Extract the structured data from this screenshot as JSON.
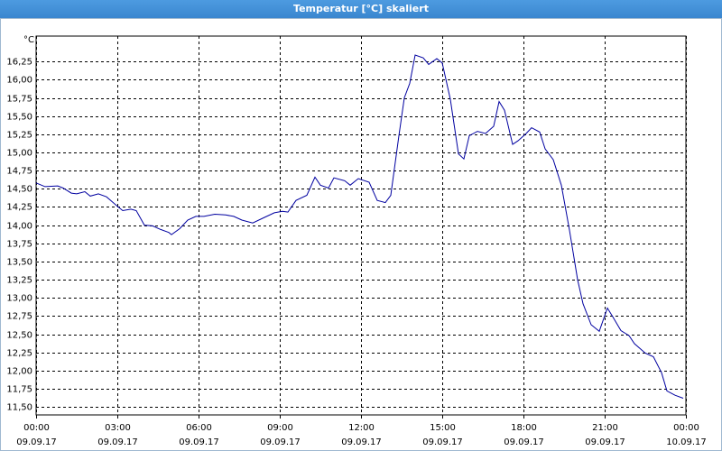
{
  "window_title": "Temperatur [°C] skaliert",
  "chart_data": {
    "type": "line",
    "y_unit_label": "°C",
    "x": [
      0,
      0.33,
      0.8,
      1.0,
      1.3,
      1.5,
      1.8,
      2.0,
      2.3,
      2.6,
      3.0,
      3.2,
      3.5,
      3.7,
      4.0,
      4.3,
      4.6,
      4.9,
      5.0,
      5.3,
      5.6,
      5.9,
      6.2,
      6.6,
      7.0,
      7.3,
      7.6,
      8.0,
      8.4,
      8.8,
      9.1,
      9.3,
      9.6,
      10.0,
      10.3,
      10.5,
      10.8,
      11.0,
      11.4,
      11.6,
      11.9,
      12.3,
      12.6,
      12.9,
      13.1,
      13.4,
      13.6,
      13.8,
      14.0,
      14.3,
      14.5,
      14.8,
      15.0,
      15.3,
      15.6,
      15.8,
      16.0,
      16.3,
      16.6,
      16.9,
      17.1,
      17.3,
      17.6,
      17.8,
      18.1,
      18.3,
      18.6,
      18.8,
      19.1,
      19.4,
      19.7,
      20.0,
      20.2,
      20.5,
      20.8,
      21.1,
      21.3,
      21.6,
      21.9,
      22.1,
      22.5,
      22.8,
      23.1,
      23.3,
      23.6,
      23.9
    ],
    "series": [
      {
        "name": "Temperatur",
        "color": "#0000a0",
        "values": [
          14.58,
          14.53,
          14.54,
          14.51,
          14.44,
          14.43,
          14.46,
          14.4,
          14.43,
          14.39,
          14.26,
          14.2,
          14.22,
          14.2,
          14.0,
          13.99,
          13.94,
          13.9,
          13.87,
          13.95,
          14.07,
          14.12,
          14.12,
          14.15,
          14.14,
          14.12,
          14.07,
          14.03,
          14.1,
          14.17,
          14.19,
          14.18,
          14.34,
          14.41,
          14.66,
          14.55,
          14.51,
          14.65,
          14.61,
          14.55,
          14.64,
          14.59,
          14.34,
          14.31,
          14.41,
          15.23,
          15.75,
          15.95,
          16.34,
          16.3,
          16.21,
          16.29,
          16.23,
          15.73,
          14.98,
          14.91,
          15.23,
          15.29,
          15.26,
          15.36,
          15.7,
          15.58,
          15.11,
          15.16,
          15.26,
          15.34,
          15.28,
          15.05,
          14.9,
          14.55,
          13.93,
          13.25,
          12.92,
          12.63,
          12.54,
          12.86,
          12.74,
          12.55,
          12.48,
          12.37,
          12.24,
          12.19,
          11.97,
          11.72,
          11.66,
          11.62
        ]
      }
    ],
    "xlim": [
      0,
      24
    ],
    "ylim": [
      11.39,
      16.6
    ],
    "xticks": [
      {
        "value": 0,
        "label": "00:00",
        "date": "09.09.17"
      },
      {
        "value": 3,
        "label": "03:00",
        "date": "09.09.17"
      },
      {
        "value": 6,
        "label": "06:00",
        "date": "09.09.17"
      },
      {
        "value": 9,
        "label": "09:00",
        "date": "09.09.17"
      },
      {
        "value": 12,
        "label": "12:00",
        "date": "09.09.17"
      },
      {
        "value": 15,
        "label": "15:00",
        "date": "09.09.17"
      },
      {
        "value": 18,
        "label": "18:00",
        "date": "09.09.17"
      },
      {
        "value": 21,
        "label": "21:00",
        "date": "09.09.17"
      },
      {
        "value": 24,
        "label": "00:00",
        "date": "10.09.17"
      }
    ],
    "yticks": [
      {
        "value": 11.5,
        "label": "11,50"
      },
      {
        "value": 11.75,
        "label": "11,75"
      },
      {
        "value": 12,
        "label": "12,00"
      },
      {
        "value": 12.25,
        "label": "12,25"
      },
      {
        "value": 12.5,
        "label": "12,50"
      },
      {
        "value": 12.75,
        "label": "12,75"
      },
      {
        "value": 13,
        "label": "13,00"
      },
      {
        "value": 13.25,
        "label": "13,25"
      },
      {
        "value": 13.5,
        "label": "13,50"
      },
      {
        "value": 13.75,
        "label": "13,75"
      },
      {
        "value": 14,
        "label": "14,00"
      },
      {
        "value": 14.25,
        "label": "14,25"
      },
      {
        "value": 14.5,
        "label": "14,50"
      },
      {
        "value": 14.75,
        "label": "14,75"
      },
      {
        "value": 15,
        "label": "15,00"
      },
      {
        "value": 15.25,
        "label": "15,25"
      },
      {
        "value": 15.5,
        "label": "15,50"
      },
      {
        "value": 15.75,
        "label": "15,75"
      },
      {
        "value": 16,
        "label": "16,00"
      },
      {
        "value": 16.25,
        "label": "16,25"
      }
    ],
    "grid": true
  }
}
